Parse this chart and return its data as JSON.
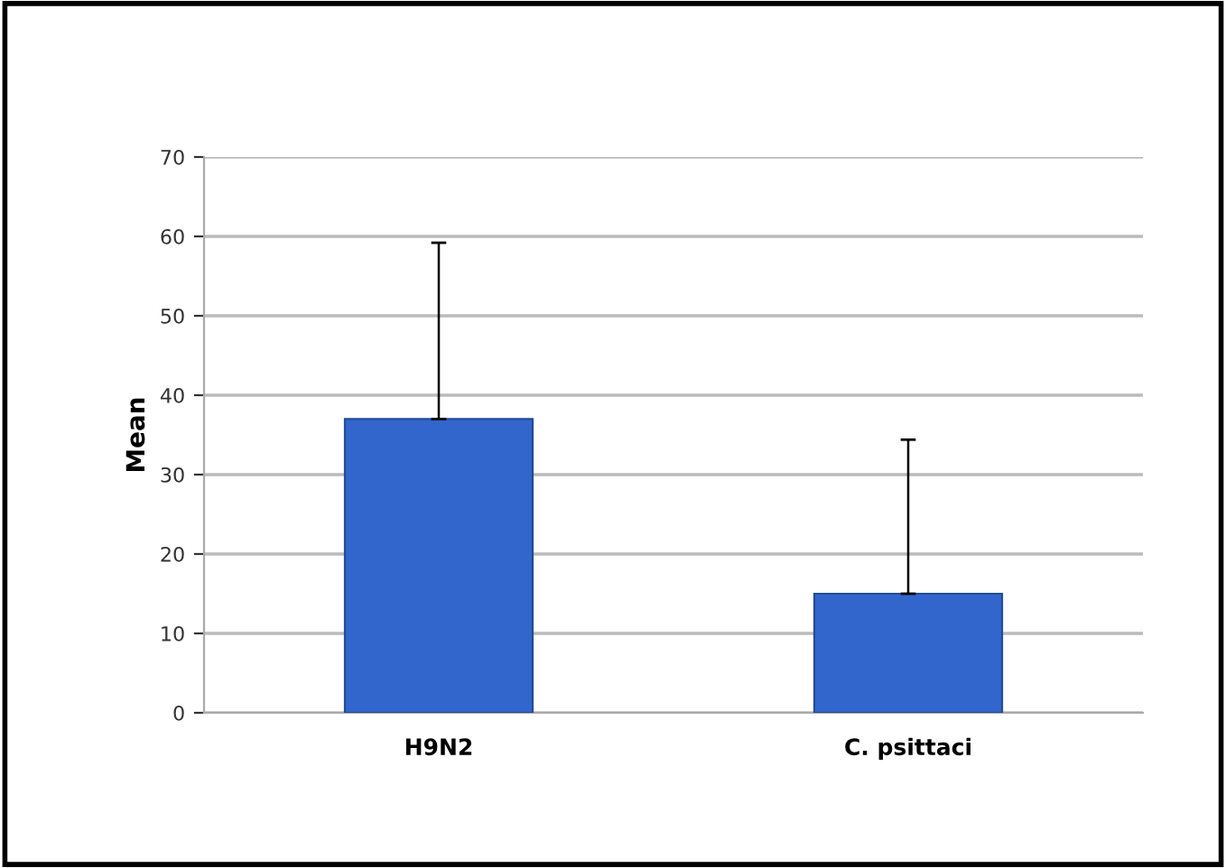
{
  "chart_data": {
    "type": "bar",
    "ylabel": "Mean",
    "categories": [
      "H9N2",
      "C. psittaci"
    ],
    "values": [
      37,
      15
    ],
    "color": "#3366cc",
    "errors": [
      [
        37,
        59.2
      ],
      [
        15,
        34.4
      ]
    ],
    "ylim": [
      0,
      70
    ],
    "yticks": [
      0,
      10,
      20,
      30,
      40,
      50,
      60,
      70
    ],
    "grid": "y"
  }
}
